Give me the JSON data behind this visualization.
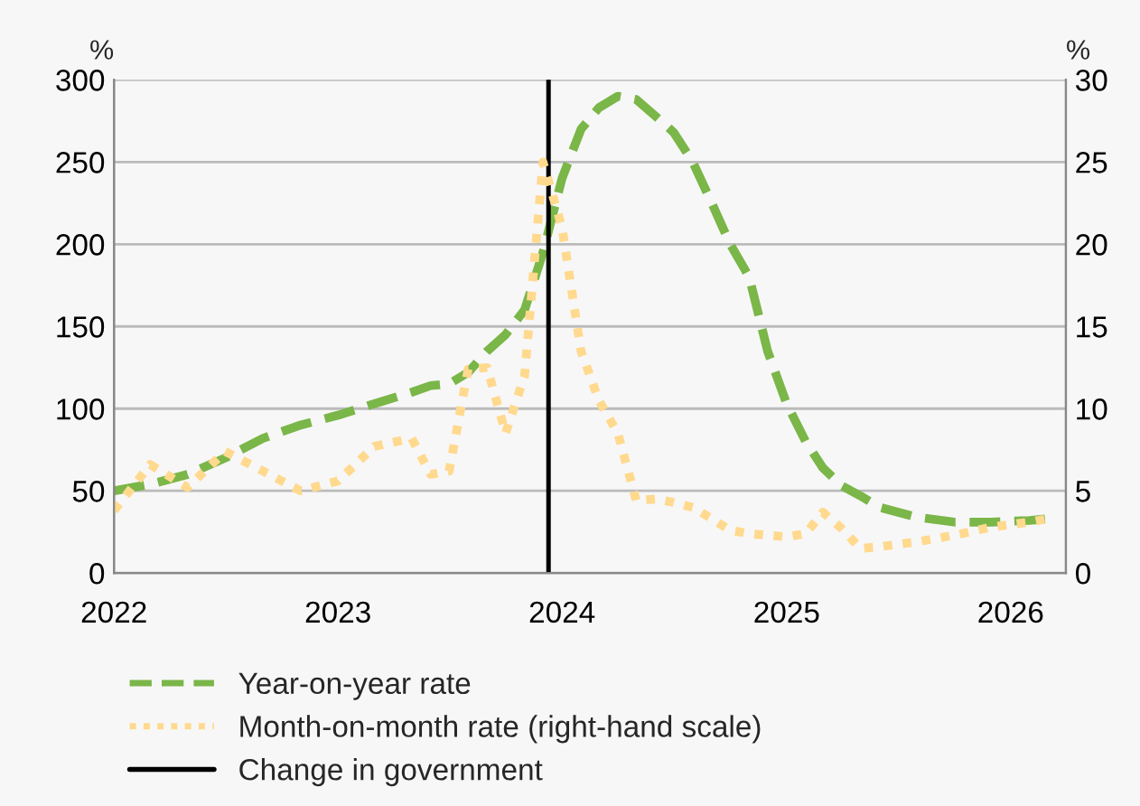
{
  "chart_data": {
    "type": "line",
    "ylabel": "%",
    "y2label": "%",
    "x": [
      "2022-01",
      "2022-03",
      "2022-05",
      "2022-07",
      "2022-09",
      "2022-11",
      "2023-01",
      "2023-03",
      "2023-05",
      "2023-06",
      "2023-07",
      "2023-08",
      "2023-09",
      "2023-10",
      "2023-11",
      "2023-12",
      "2024-01",
      "2024-02",
      "2024-03",
      "2024-04",
      "2024-05",
      "2024-06",
      "2024-07",
      "2024-08",
      "2024-09",
      "2024-10",
      "2024-11",
      "2024-12",
      "2025-01",
      "2025-02",
      "2025-03",
      "2025-04",
      "2025-05",
      "2025-06",
      "2025-08",
      "2025-10",
      "2025-12",
      "2026-02",
      "2026-03"
    ],
    "series": [
      {
        "name": "Year-on-year rate",
        "color": "#7ab648",
        "line_style": "dashed",
        "values": [
          50,
          54,
          60,
          70,
          82,
          90,
          96,
          103,
          110,
          114,
          115,
          122,
          135,
          145,
          160,
          195,
          240,
          270,
          283,
          290,
          288,
          278,
          268,
          250,
          225,
          200,
          180,
          135,
          103,
          80,
          64,
          53,
          47,
          40,
          34,
          31,
          31,
          32,
          33
        ]
      },
      {
        "name": "Month-on-month rate (right-hand scale)",
        "color": "#ffd98e",
        "line_style": "dotted",
        "axis": "y2",
        "values": [
          3.8,
          6.6,
          5.2,
          7.4,
          6.2,
          5.0,
          5.6,
          7.7,
          8.2,
          6.0,
          6.2,
          12.4,
          12.5,
          8.5,
          12.0,
          25.0,
          21.0,
          13.5,
          10.5,
          8.5,
          4.4,
          4.5,
          4.3,
          4.0,
          3.3,
          2.6,
          2.4,
          2.3,
          2.2,
          2.4,
          3.7,
          2.7,
          1.5,
          1.6,
          1.9,
          2.3,
          2.8,
          3.1,
          3.3
        ]
      }
    ],
    "xlim": [
      "2022-01",
      "2026-04"
    ],
    "xticks": [
      {
        "value": "2022-01",
        "label": "2022"
      },
      {
        "value": "2023-01",
        "label": "2023"
      },
      {
        "value": "2024-01",
        "label": "2024"
      },
      {
        "value": "2025-01",
        "label": "2025"
      },
      {
        "value": "2026-01",
        "label": "2026"
      }
    ],
    "ylim": [
      0,
      300
    ],
    "yticks": [
      0,
      50,
      100,
      150,
      200,
      250,
      300
    ],
    "y2lim": [
      0,
      30
    ],
    "y2ticks": [
      0,
      5,
      10,
      15,
      20,
      25,
      30
    ],
    "ref_lines": [
      {
        "axis": "x",
        "value": "2023-12-10",
        "label": "Change in government",
        "color": "#000000",
        "line_style": "solid"
      }
    ],
    "grid": "y",
    "legend": "bottom"
  }
}
